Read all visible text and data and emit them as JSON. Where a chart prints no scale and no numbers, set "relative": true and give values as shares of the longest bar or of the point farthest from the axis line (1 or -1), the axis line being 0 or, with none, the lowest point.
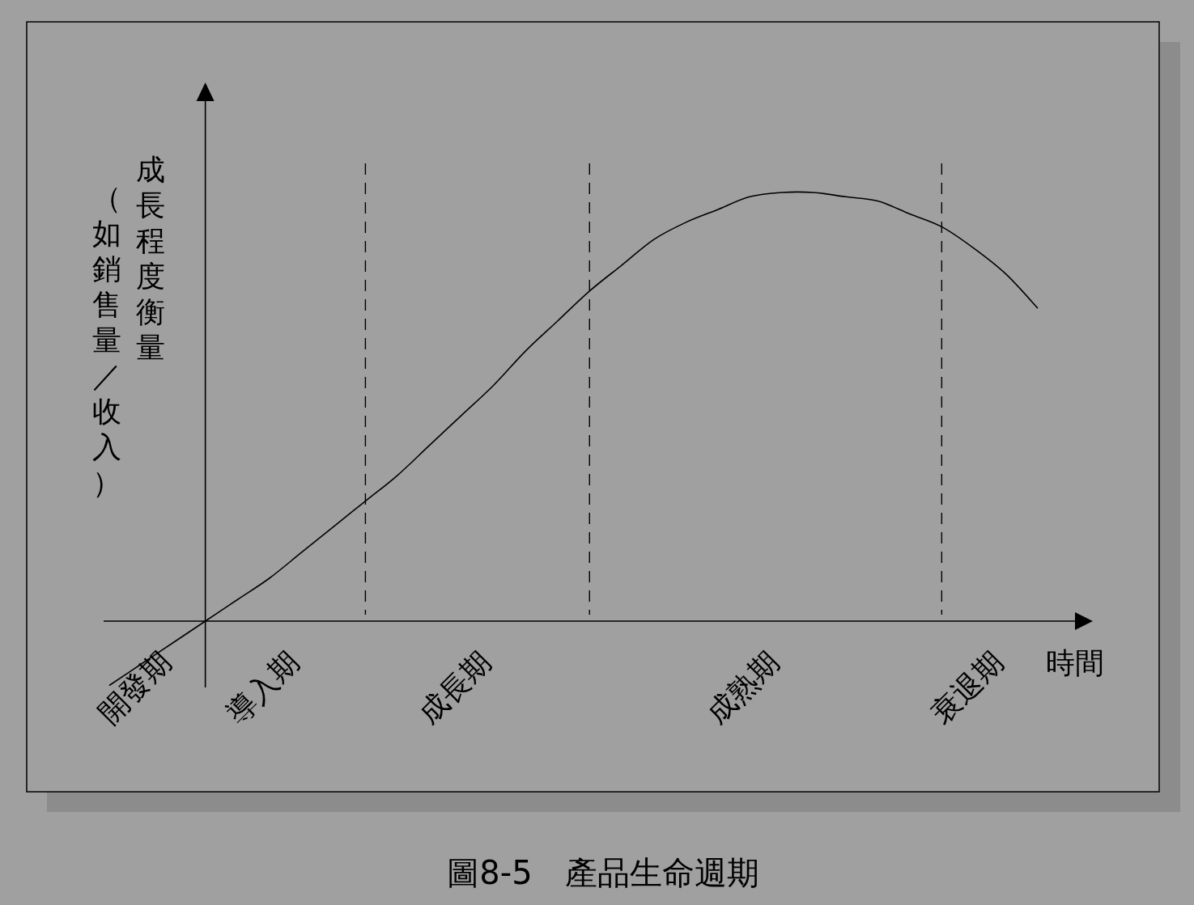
{
  "chart_data": {
    "type": "line",
    "relative": true,
    "title": "圖8-5　產品生命週期",
    "xlabel": "時間",
    "ylabel": "成長程度衡量（如銷售量／收入）",
    "categories": [
      null,
      null,
      null,
      null,
      null,
      null,
      null,
      null,
      null,
      null,
      null,
      null,
      null,
      null,
      null,
      null,
      null,
      null,
      null,
      null,
      null,
      null,
      null,
      null,
      null,
      null,
      null,
      null,
      null,
      null
    ],
    "series": [
      {
        "color": "#000000",
        "values": [
          -0.15,
          -0.1,
          -0.05,
          0,
          0.05,
          0.1,
          0.16,
          0.22,
          0.28,
          0.34,
          0.41,
          0.48,
          0.55,
          0.63,
          0.7,
          0.77,
          0.83,
          0.89,
          0.93,
          0.96,
          0.99,
          1.0,
          1.0,
          0.99,
          0.98,
          0.95,
          0.92,
          0.87,
          0.81,
          0.73
        ]
      }
    ],
    "annotations": [
      "開發期",
      "導入期",
      "成長期",
      "成熟期",
      "衰退期"
    ],
    "grid": "x",
    "line_style": "solid"
  }
}
